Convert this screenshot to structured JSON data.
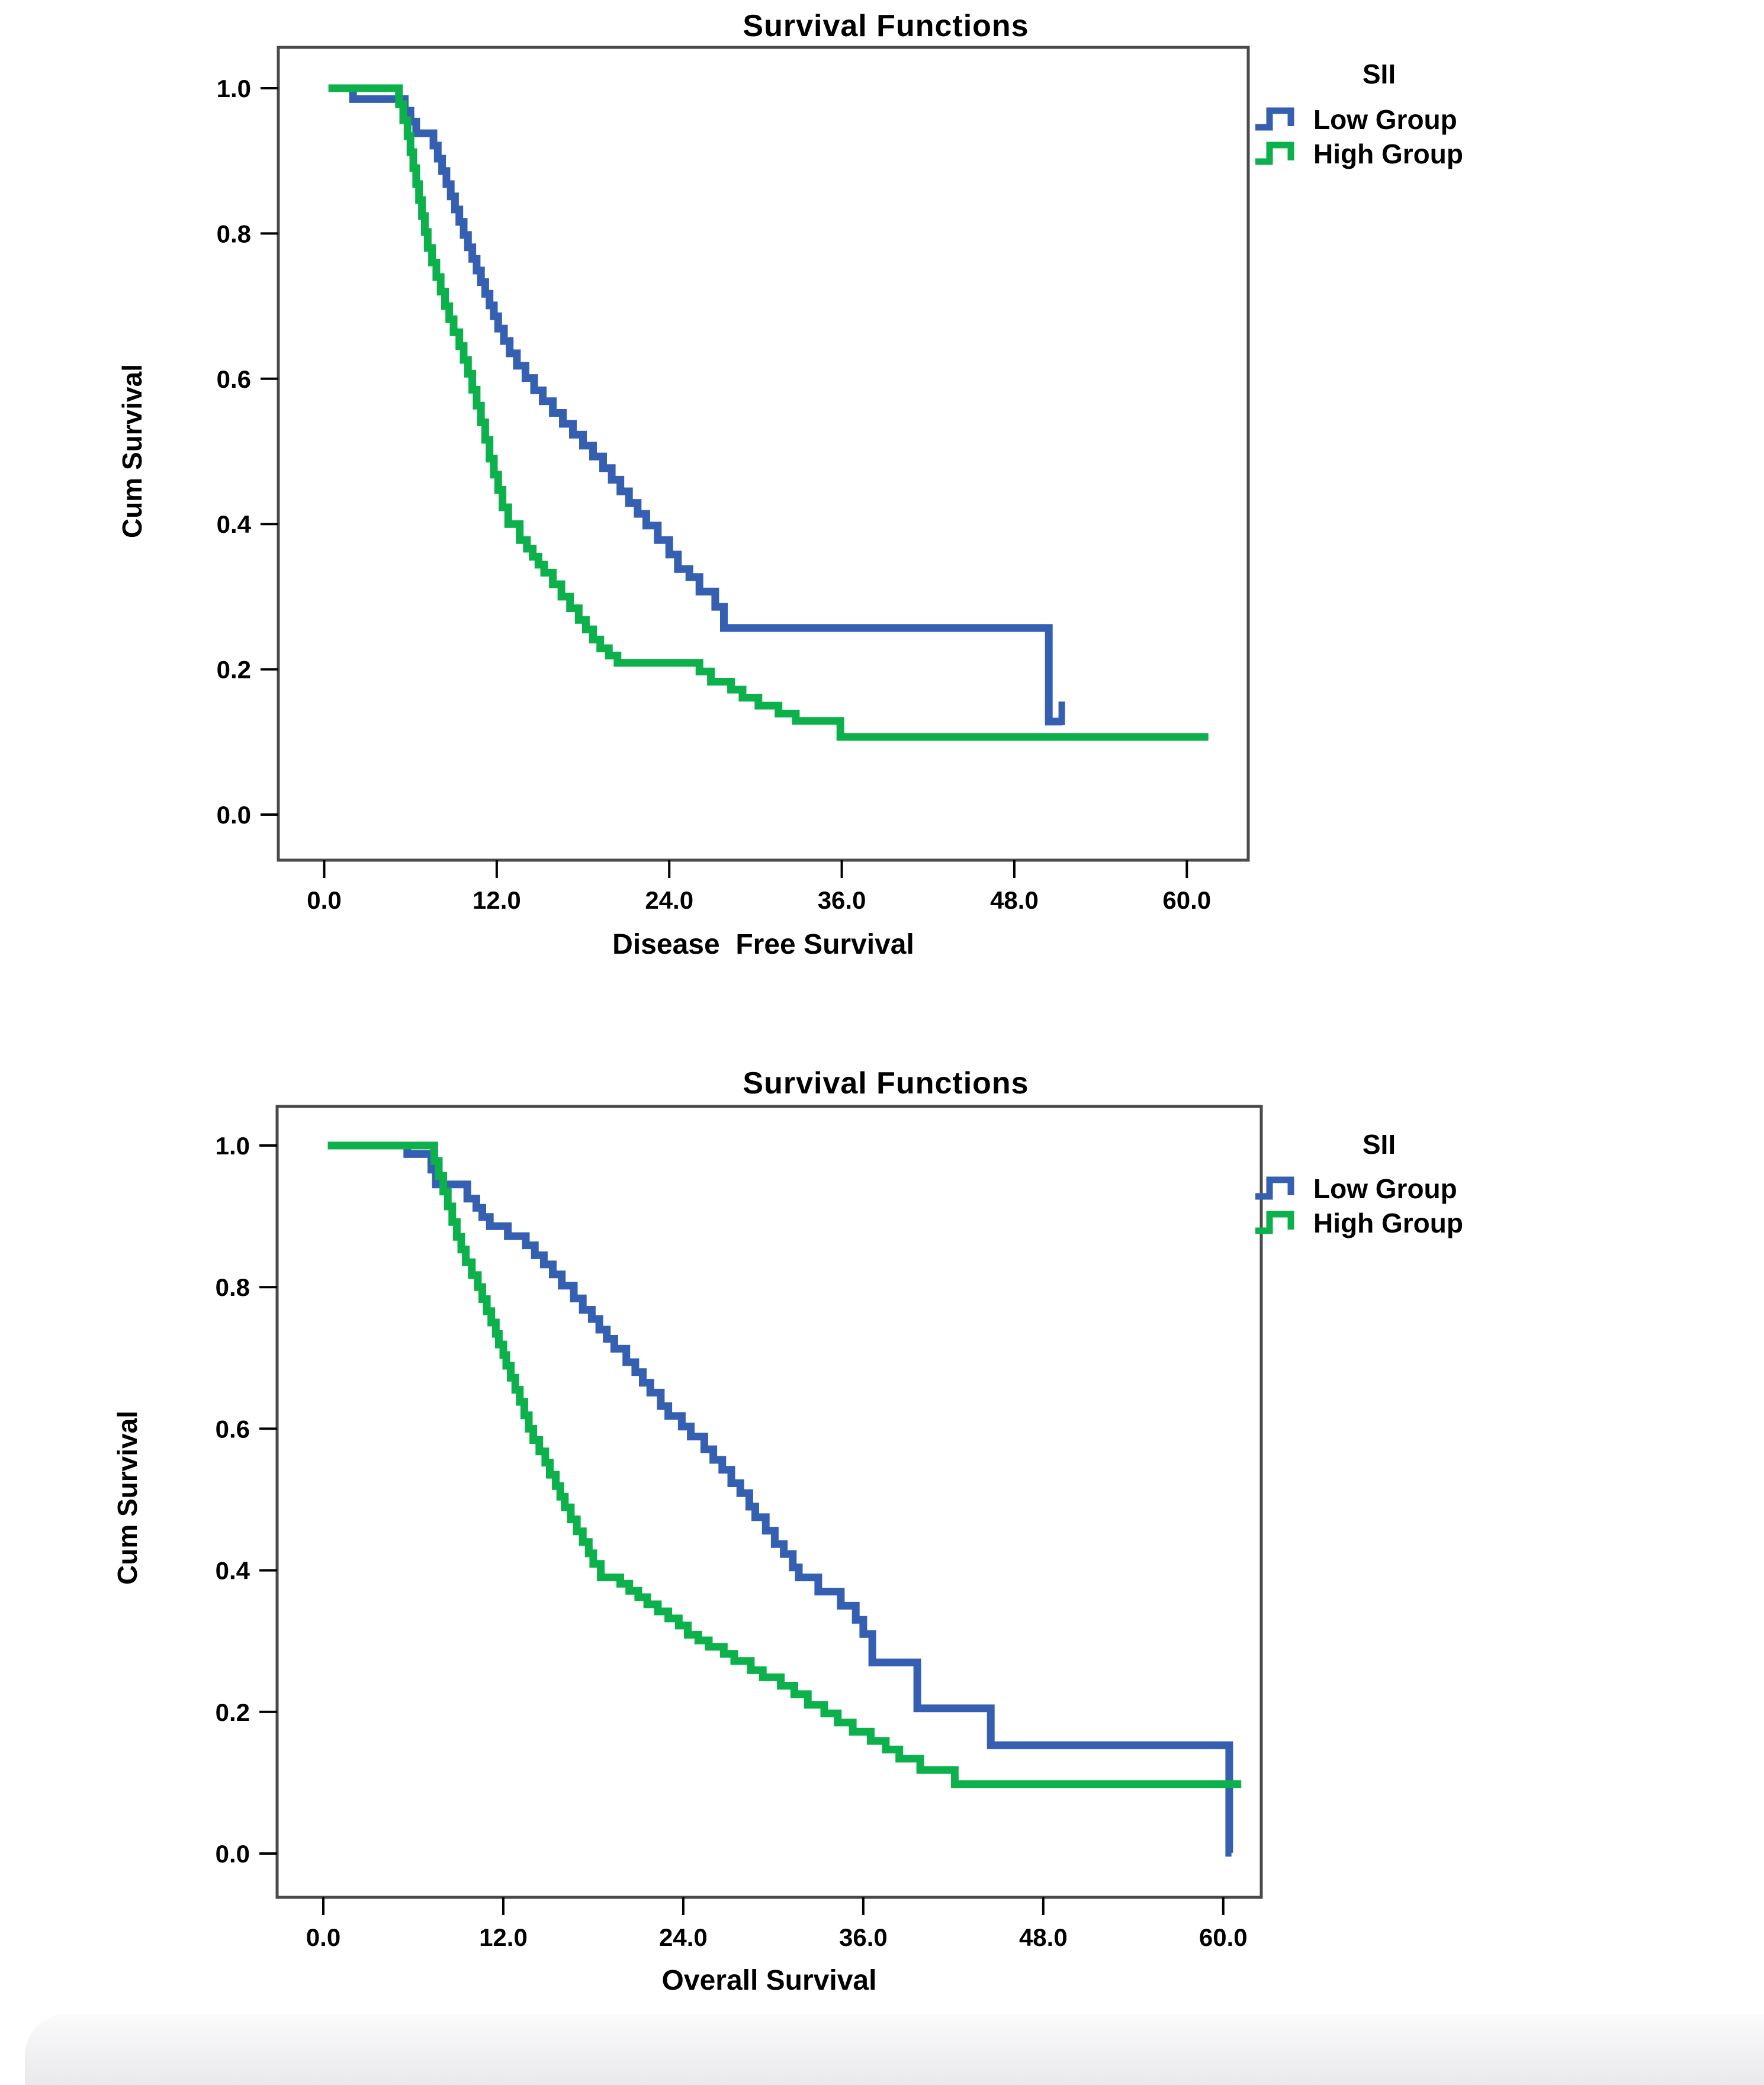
{
  "figure": {
    "background": "#ffffff"
  },
  "chart_data": [
    {
      "type": "line",
      "subtype": "kaplan-meier-step",
      "title": "Survival Functions",
      "xlabel": "Disease  Free Survival",
      "ylabel": "Cum Survival",
      "legend_title": "SII",
      "legend_position": "right-top",
      "grid": false,
      "xlim": [
        -3.2,
        64.3
      ],
      "ylim": [
        -0.06,
        1.06
      ],
      "xticks": [
        "0.0",
        "12.0",
        "24.0",
        "36.0",
        "48.0",
        "60.0"
      ],
      "xtick_values": [
        0,
        12,
        24,
        36,
        48,
        60
      ],
      "yticks": [
        "0.0",
        "0.2",
        "0.4",
        "0.6",
        "0.8",
        "1.0"
      ],
      "ytick_values": [
        0,
        0.2,
        0.4,
        0.6,
        0.8,
        1.0
      ],
      "series": [
        {
          "name": "Low Group",
          "color": "#3560B2",
          "end_t": 51.35,
          "censors": [
            [
              51.3,
              0.128
            ]
          ],
          "points": [
            [
              0.3,
              1.0
            ],
            [
              2.0,
              0.985
            ],
            [
              5.6,
              0.969
            ],
            [
              6.0,
              0.954
            ],
            [
              6.4,
              0.938
            ],
            [
              7.6,
              0.921
            ],
            [
              7.9,
              0.903
            ],
            [
              8.2,
              0.886
            ],
            [
              8.5,
              0.868
            ],
            [
              8.8,
              0.851
            ],
            [
              9.1,
              0.833
            ],
            [
              9.4,
              0.816
            ],
            [
              9.7,
              0.798
            ],
            [
              10.0,
              0.781
            ],
            [
              10.3,
              0.765
            ],
            [
              10.6,
              0.749
            ],
            [
              10.9,
              0.733
            ],
            [
              11.2,
              0.717
            ],
            [
              11.5,
              0.701
            ],
            [
              11.8,
              0.686
            ],
            [
              12.1,
              0.669
            ],
            [
              12.5,
              0.652
            ],
            [
              12.9,
              0.635
            ],
            [
              13.4,
              0.618
            ],
            [
              14.0,
              0.601
            ],
            [
              14.6,
              0.584
            ],
            [
              15.2,
              0.569
            ],
            [
              15.9,
              0.553
            ],
            [
              16.6,
              0.538
            ],
            [
              17.3,
              0.523
            ],
            [
              18.0,
              0.508
            ],
            [
              18.7,
              0.493
            ],
            [
              19.4,
              0.477
            ],
            [
              20.0,
              0.461
            ],
            [
              20.6,
              0.445
            ],
            [
              21.2,
              0.429
            ],
            [
              21.8,
              0.414
            ],
            [
              22.4,
              0.398
            ],
            [
              23.2,
              0.378
            ],
            [
              24.0,
              0.358
            ],
            [
              24.6,
              0.338
            ],
            [
              25.4,
              0.327
            ],
            [
              26.1,
              0.307
            ],
            [
              27.2,
              0.286
            ],
            [
              27.8,
              0.257
            ],
            [
              50.4,
              0.128
            ]
          ]
        },
        {
          "name": "High Group",
          "color": "#0CB14B",
          "end_t": 61.5,
          "censors": [],
          "points": [
            [
              0.3,
              1.0
            ],
            [
              5.2,
              0.978
            ],
            [
              5.5,
              0.956
            ],
            [
              5.8,
              0.934
            ],
            [
              6.0,
              0.912
            ],
            [
              6.2,
              0.89
            ],
            [
              6.4,
              0.868
            ],
            [
              6.6,
              0.846
            ],
            [
              6.8,
              0.824
            ],
            [
              7.0,
              0.802
            ],
            [
              7.2,
              0.78
            ],
            [
              7.5,
              0.76
            ],
            [
              7.8,
              0.74
            ],
            [
              8.1,
              0.72
            ],
            [
              8.4,
              0.7
            ],
            [
              8.7,
              0.682
            ],
            [
              9.0,
              0.664
            ],
            [
              9.4,
              0.645
            ],
            [
              9.7,
              0.626
            ],
            [
              10.0,
              0.607
            ],
            [
              10.3,
              0.585
            ],
            [
              10.6,
              0.563
            ],
            [
              10.9,
              0.54
            ],
            [
              11.2,
              0.516
            ],
            [
              11.5,
              0.49
            ],
            [
              11.8,
              0.468
            ],
            [
              12.1,
              0.447
            ],
            [
              12.4,
              0.423
            ],
            [
              12.8,
              0.4
            ],
            [
              13.6,
              0.378
            ],
            [
              14.1,
              0.366
            ],
            [
              14.5,
              0.355
            ],
            [
              14.9,
              0.344
            ],
            [
              15.3,
              0.333
            ],
            [
              15.9,
              0.317
            ],
            [
              16.5,
              0.3
            ],
            [
              17.1,
              0.284
            ],
            [
              17.7,
              0.268
            ],
            [
              18.2,
              0.255
            ],
            [
              18.7,
              0.241
            ],
            [
              19.2,
              0.229
            ],
            [
              19.8,
              0.219
            ],
            [
              20.4,
              0.209
            ],
            [
              26.1,
              0.197
            ],
            [
              26.9,
              0.183
            ],
            [
              28.3,
              0.172
            ],
            [
              29.1,
              0.161
            ],
            [
              30.2,
              0.15
            ],
            [
              31.6,
              0.139
            ],
            [
              32.8,
              0.129
            ],
            [
              35.9,
              0.107
            ]
          ]
        }
      ]
    },
    {
      "type": "line",
      "subtype": "kaplan-meier-step",
      "title": "Survival Functions",
      "xlabel": "Overall Survival",
      "ylabel": "Cum Survival",
      "legend_title": "SII",
      "legend_position": "right-top",
      "grid": false,
      "xlim": [
        -3.1,
        62.5
      ],
      "ylim": [
        -0.06,
        1.06
      ],
      "xticks": [
        "0.0",
        "12.0",
        "24.0",
        "36.0",
        "48.0",
        "60.0"
      ],
      "xtick_values": [
        0,
        12,
        24,
        36,
        48,
        60
      ],
      "yticks": [
        "0.0",
        "0.2",
        "0.4",
        "0.6",
        "0.8",
        "1.0"
      ],
      "ytick_values": [
        0,
        0.2,
        0.4,
        0.6,
        0.8,
        1.0
      ],
      "series": [
        {
          "name": "Low Group",
          "color": "#3560B2",
          "end_t": 60.55,
          "censors": [],
          "points": [
            [
              0.3,
              1.0
            ],
            [
              5.6,
              0.988
            ],
            [
              7.2,
              0.966
            ],
            [
              7.5,
              0.945
            ],
            [
              9.6,
              0.925
            ],
            [
              10.2,
              0.912
            ],
            [
              10.6,
              0.899
            ],
            [
              11.1,
              0.886
            ],
            [
              12.3,
              0.872
            ],
            [
              13.5,
              0.859
            ],
            [
              14.1,
              0.845
            ],
            [
              14.7,
              0.832
            ],
            [
              15.3,
              0.818
            ],
            [
              15.9,
              0.802
            ],
            [
              16.7,
              0.784
            ],
            [
              17.3,
              0.768
            ],
            [
              17.9,
              0.755
            ],
            [
              18.4,
              0.74
            ],
            [
              18.9,
              0.727
            ],
            [
              19.4,
              0.713
            ],
            [
              20.2,
              0.694
            ],
            [
              20.8,
              0.68
            ],
            [
              21.3,
              0.665
            ],
            [
              21.8,
              0.651
            ],
            [
              22.5,
              0.632
            ],
            [
              23.0,
              0.618
            ],
            [
              23.9,
              0.603
            ],
            [
              24.5,
              0.589
            ],
            [
              25.4,
              0.571
            ],
            [
              26.0,
              0.556
            ],
            [
              26.6,
              0.542
            ],
            [
              27.2,
              0.523
            ],
            [
              27.8,
              0.509
            ],
            [
              28.4,
              0.49
            ],
            [
              28.8,
              0.475
            ],
            [
              29.5,
              0.456
            ],
            [
              30.1,
              0.437
            ],
            [
              30.7,
              0.423
            ],
            [
              31.3,
              0.404
            ],
            [
              31.7,
              0.39
            ],
            [
              33.0,
              0.37
            ],
            [
              34.5,
              0.35
            ],
            [
              35.5,
              0.33
            ],
            [
              36.0,
              0.31
            ],
            [
              36.6,
              0.27
            ],
            [
              39.6,
              0.205
            ],
            [
              44.5,
              0.153
            ],
            [
              60.4,
              0.001
            ]
          ]
        },
        {
          "name": "High Group",
          "color": "#0CB14B",
          "end_t": 61.2,
          "censors": [],
          "points": [
            [
              0.3,
              1.0
            ],
            [
              7.4,
              0.978
            ],
            [
              7.7,
              0.957
            ],
            [
              8.0,
              0.935
            ],
            [
              8.3,
              0.914
            ],
            [
              8.6,
              0.892
            ],
            [
              8.9,
              0.871
            ],
            [
              9.2,
              0.853
            ],
            [
              9.5,
              0.835
            ],
            [
              9.9,
              0.817
            ],
            [
              10.3,
              0.8
            ],
            [
              10.6,
              0.783
            ],
            [
              10.9,
              0.766
            ],
            [
              11.2,
              0.75
            ],
            [
              11.5,
              0.734
            ],
            [
              11.7,
              0.719
            ],
            [
              12.0,
              0.704
            ],
            [
              12.2,
              0.689
            ],
            [
              12.5,
              0.672
            ],
            [
              12.8,
              0.655
            ],
            [
              13.1,
              0.638
            ],
            [
              13.4,
              0.619
            ],
            [
              13.7,
              0.6
            ],
            [
              14.0,
              0.584
            ],
            [
              14.4,
              0.568
            ],
            [
              14.8,
              0.552
            ],
            [
              15.1,
              0.535
            ],
            [
              15.5,
              0.519
            ],
            [
              15.8,
              0.504
            ],
            [
              16.1,
              0.489
            ],
            [
              16.5,
              0.472
            ],
            [
              16.9,
              0.455
            ],
            [
              17.3,
              0.44
            ],
            [
              17.7,
              0.424
            ],
            [
              18.0,
              0.409
            ],
            [
              18.5,
              0.39
            ],
            [
              19.8,
              0.381
            ],
            [
              20.4,
              0.371
            ],
            [
              21.0,
              0.362
            ],
            [
              21.6,
              0.352
            ],
            [
              22.3,
              0.342
            ],
            [
              23.0,
              0.332
            ],
            [
              23.7,
              0.322
            ],
            [
              24.3,
              0.309
            ],
            [
              25.0,
              0.301
            ],
            [
              25.7,
              0.292
            ],
            [
              26.7,
              0.282
            ],
            [
              27.4,
              0.272
            ],
            [
              28.5,
              0.259
            ],
            [
              29.3,
              0.249
            ],
            [
              30.5,
              0.237
            ],
            [
              31.4,
              0.225
            ],
            [
              32.3,
              0.21
            ],
            [
              33.4,
              0.198
            ],
            [
              34.3,
              0.185
            ],
            [
              35.3,
              0.172
            ],
            [
              36.5,
              0.159
            ],
            [
              37.5,
              0.147
            ],
            [
              38.4,
              0.134
            ],
            [
              39.8,
              0.118
            ],
            [
              42.1,
              0.098
            ]
          ]
        }
      ]
    }
  ]
}
